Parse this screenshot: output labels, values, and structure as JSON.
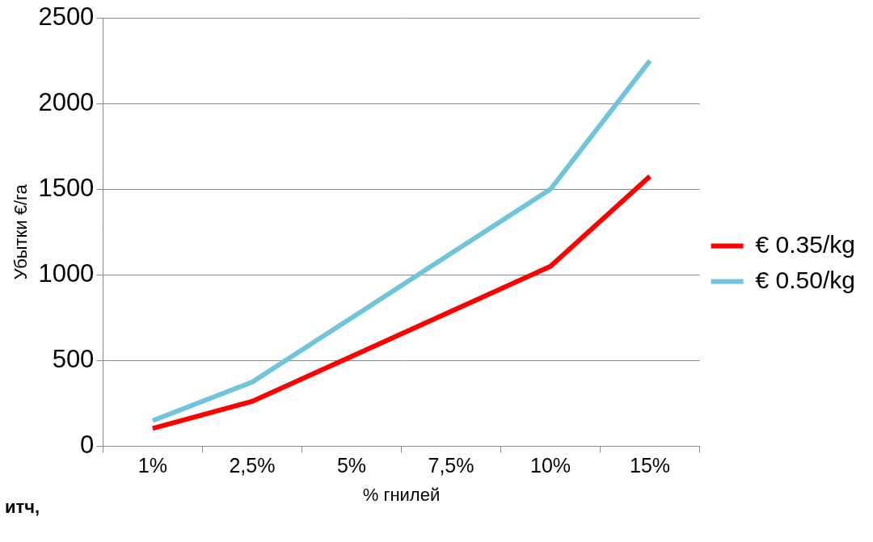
{
  "chart_data": {
    "type": "line",
    "x_label": "% гнилей",
    "y_label": "Убытки €/га",
    "annotations": [
      "итч,"
    ],
    "categories": [
      "1%",
      "2,5%",
      "5%",
      "7,5%",
      "10%",
      "15%"
    ],
    "series": [
      {
        "name": "€ 0.35/kg",
        "color": "#ff0000",
        "values": [
          105,
          262,
          525,
          787,
          1050,
          1575
        ]
      },
      {
        "name": "€ 0.50/kg",
        "color": "#70c4dc",
        "values": [
          150,
          375,
          750,
          1125,
          1500,
          2250
        ]
      }
    ],
    "ylim": [
      0,
      2500
    ],
    "yticks": [
      0,
      500,
      1000,
      1500,
      2000,
      2500
    ],
    "grid": true,
    "legend": "right"
  }
}
